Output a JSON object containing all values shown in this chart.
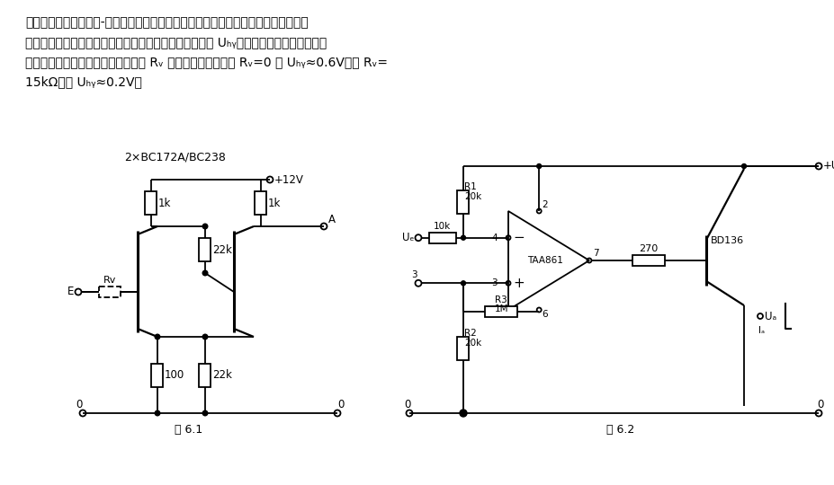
{
  "background_color": "#ffffff",
  "fig1_label": "图 6.1",
  "fig2_label": "图 6.2",
  "fig1_title": "2×BC172A/BC238",
  "header_lines": [
    "采用施密特觸发器作模-数转换器，其输出决定于输入信号大小且仅有两种状态。在输",
    "入电压上升和下降换接时间之间的电压差值称为滞环电压 Uₕᵧ，其大小可以通过改变左晶",
    "体管的阈值电压而改变，并且同电阱 Rᵥ 大小有关。如本例中 Rᵥ=0 则 Uₕᵧ≈0.6V；如 Rᵥ=",
    "15kΩ，则 Uₕᵧ≈0.2V。"
  ]
}
